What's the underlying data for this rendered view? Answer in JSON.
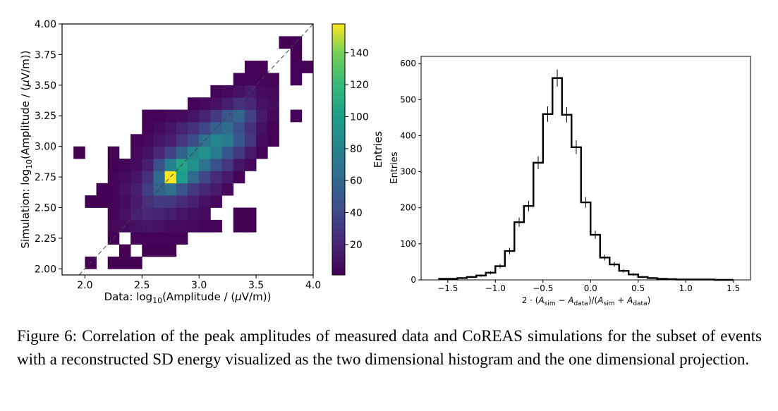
{
  "chart_data": [
    {
      "type": "heatmap",
      "xlabel": "Data: log₁₀(Amplitude / (μV/m))",
      "ylabel": "Simulation: log₁₀(Amplitude / (μV/m))",
      "xlim": [
        1.8,
        4.0
      ],
      "ylim": [
        1.95,
        4.0
      ],
      "xticks": [
        "2.0",
        "2.5",
        "3.0",
        "3.5",
        "4.0"
      ],
      "yticks": [
        "2.00",
        "2.25",
        "2.50",
        "2.75",
        "3.00",
        "3.25",
        "3.50",
        "3.75",
        "4.00"
      ],
      "colorbar": {
        "label": "Entries",
        "ticks": [
          "20",
          "40",
          "60",
          "80",
          "100",
          "120",
          "140"
        ],
        "range": [
          1,
          158
        ]
      },
      "diagonal_reference": true,
      "bin_width": 0.1,
      "x_bin_starts": [
        1.9,
        2.0,
        2.1,
        2.2,
        2.3,
        2.4,
        2.5,
        2.6,
        2.7,
        2.8,
        2.9,
        3.0,
        3.1,
        3.2,
        3.3,
        3.4,
        3.5,
        3.6,
        3.7,
        3.8,
        3.9
      ],
      "y_bin_starts": [
        2.0,
        2.1,
        2.2,
        2.3,
        2.4,
        2.5,
        2.6,
        2.7,
        2.8,
        2.9,
        3.0,
        3.1,
        3.2,
        3.3,
        3.4,
        3.5,
        3.6,
        3.7,
        3.8
      ],
      "counts": [
        [
          0,
          1,
          0,
          1,
          1,
          1,
          0,
          0,
          0,
          0,
          0,
          0,
          0,
          0,
          0,
          0,
          0,
          0,
          0,
          0,
          0
        ],
        [
          0,
          0,
          0,
          0,
          1,
          0,
          1,
          1,
          1,
          0,
          0,
          0,
          0,
          0,
          0,
          0,
          0,
          0,
          0,
          0,
          0
        ],
        [
          0,
          0,
          0,
          2,
          0,
          3,
          2,
          2,
          2,
          2,
          0,
          0,
          0,
          0,
          0,
          0,
          0,
          0,
          0,
          0,
          0
        ],
        [
          0,
          0,
          0,
          4,
          6,
          8,
          10,
          8,
          6,
          5,
          4,
          3,
          3,
          0,
          1,
          1,
          0,
          0,
          0,
          0,
          0
        ],
        [
          0,
          0,
          0,
          3,
          8,
          15,
          18,
          16,
          14,
          10,
          7,
          5,
          0,
          0,
          1,
          1,
          0,
          0,
          0,
          0,
          0
        ],
        [
          0,
          1,
          1,
          2,
          6,
          12,
          22,
          28,
          26,
          20,
          15,
          8,
          4,
          0,
          0,
          0,
          0,
          0,
          0,
          0,
          0
        ],
        [
          0,
          0,
          1,
          2,
          8,
          14,
          30,
          50,
          58,
          42,
          28,
          18,
          12,
          4,
          0,
          0,
          0,
          0,
          0,
          0,
          0
        ],
        [
          0,
          0,
          0,
          3,
          6,
          10,
          22,
          55,
          158,
          88,
          55,
          35,
          20,
          12,
          2,
          0,
          0,
          0,
          0,
          0,
          0
        ],
        [
          0,
          0,
          0,
          1,
          3,
          6,
          14,
          40,
          70,
          92,
          80,
          60,
          40,
          26,
          10,
          4,
          0,
          0,
          0,
          0,
          0
        ],
        [
          1,
          0,
          0,
          2,
          0,
          4,
          8,
          18,
          32,
          50,
          72,
          80,
          66,
          44,
          28,
          12,
          3,
          0,
          0,
          0,
          0
        ],
        [
          0,
          0,
          0,
          0,
          0,
          2,
          4,
          10,
          14,
          26,
          38,
          60,
          72,
          66,
          44,
          26,
          6,
          2,
          0,
          0,
          0
        ],
        [
          0,
          0,
          0,
          0,
          0,
          0,
          2,
          6,
          10,
          16,
          22,
          34,
          48,
          56,
          40,
          22,
          8,
          2,
          0,
          0,
          0
        ],
        [
          0,
          0,
          0,
          0,
          0,
          0,
          3,
          2,
          4,
          6,
          10,
          16,
          28,
          44,
          52,
          32,
          12,
          4,
          0,
          3,
          0
        ],
        [
          0,
          0,
          0,
          0,
          0,
          0,
          0,
          0,
          0,
          0,
          2,
          4,
          8,
          14,
          22,
          18,
          8,
          6,
          0,
          0,
          0
        ],
        [
          0,
          0,
          0,
          0,
          0,
          0,
          0,
          0,
          0,
          0,
          0,
          0,
          3,
          4,
          8,
          12,
          6,
          4,
          0,
          0,
          0
        ],
        [
          0,
          0,
          0,
          0,
          0,
          0,
          0,
          0,
          0,
          0,
          0,
          0,
          0,
          0,
          2,
          3,
          3,
          2,
          0,
          2,
          0
        ],
        [
          0,
          0,
          0,
          0,
          0,
          0,
          0,
          0,
          0,
          0,
          0,
          0,
          0,
          0,
          0,
          2,
          2,
          0,
          0,
          2,
          2
        ],
        [
          0,
          0,
          0,
          0,
          0,
          0,
          0,
          0,
          0,
          0,
          0,
          0,
          0,
          0,
          0,
          0,
          0,
          0,
          0,
          1,
          0
        ],
        [
          0,
          0,
          0,
          0,
          0,
          0,
          0,
          0,
          0,
          0,
          0,
          0,
          0,
          0,
          0,
          0,
          0,
          0,
          1,
          2,
          0
        ]
      ]
    },
    {
      "type": "histogram",
      "xlabel": "2 · (A_sim − A_data)/(A_sim + A_data)",
      "ylabel": "Entries",
      "xlim": [
        -1.78,
        1.68
      ],
      "ylim": [
        0,
        620
      ],
      "xticks": [
        "−1.5",
        "−1.0",
        "−0.5",
        "0.0",
        "0.5",
        "1.0",
        "1.5"
      ],
      "yticks": [
        "0",
        "100",
        "200",
        "300",
        "400",
        "500",
        "600"
      ],
      "bin_edges": [
        -1.6,
        -1.5,
        -1.4,
        -1.3,
        -1.2,
        -1.1,
        -1.0,
        -0.9,
        -0.8,
        -0.7,
        -0.6,
        -0.5,
        -0.4,
        -0.3,
        -0.2,
        -0.1,
        0.0,
        0.1,
        0.2,
        0.3,
        0.4,
        0.5,
        0.6,
        0.7,
        0.8,
        0.9,
        1.0,
        1.1,
        1.2,
        1.3,
        1.4,
        1.5
      ],
      "values": [
        3,
        3,
        5,
        8,
        12,
        20,
        38,
        80,
        160,
        205,
        325,
        460,
        560,
        458,
        368,
        215,
        125,
        62,
        43,
        25,
        15,
        8,
        5,
        3,
        2,
        1,
        1,
        1,
        1,
        0,
        0
      ],
      "error_bars": true
    }
  ],
  "caption": "Figure 6: Correlation of the peak amplitudes of measured data and CoREAS simulations for the subset of events with a reconstructed SD energy visualized as the two dimensional histogram and the one dimensional projection."
}
